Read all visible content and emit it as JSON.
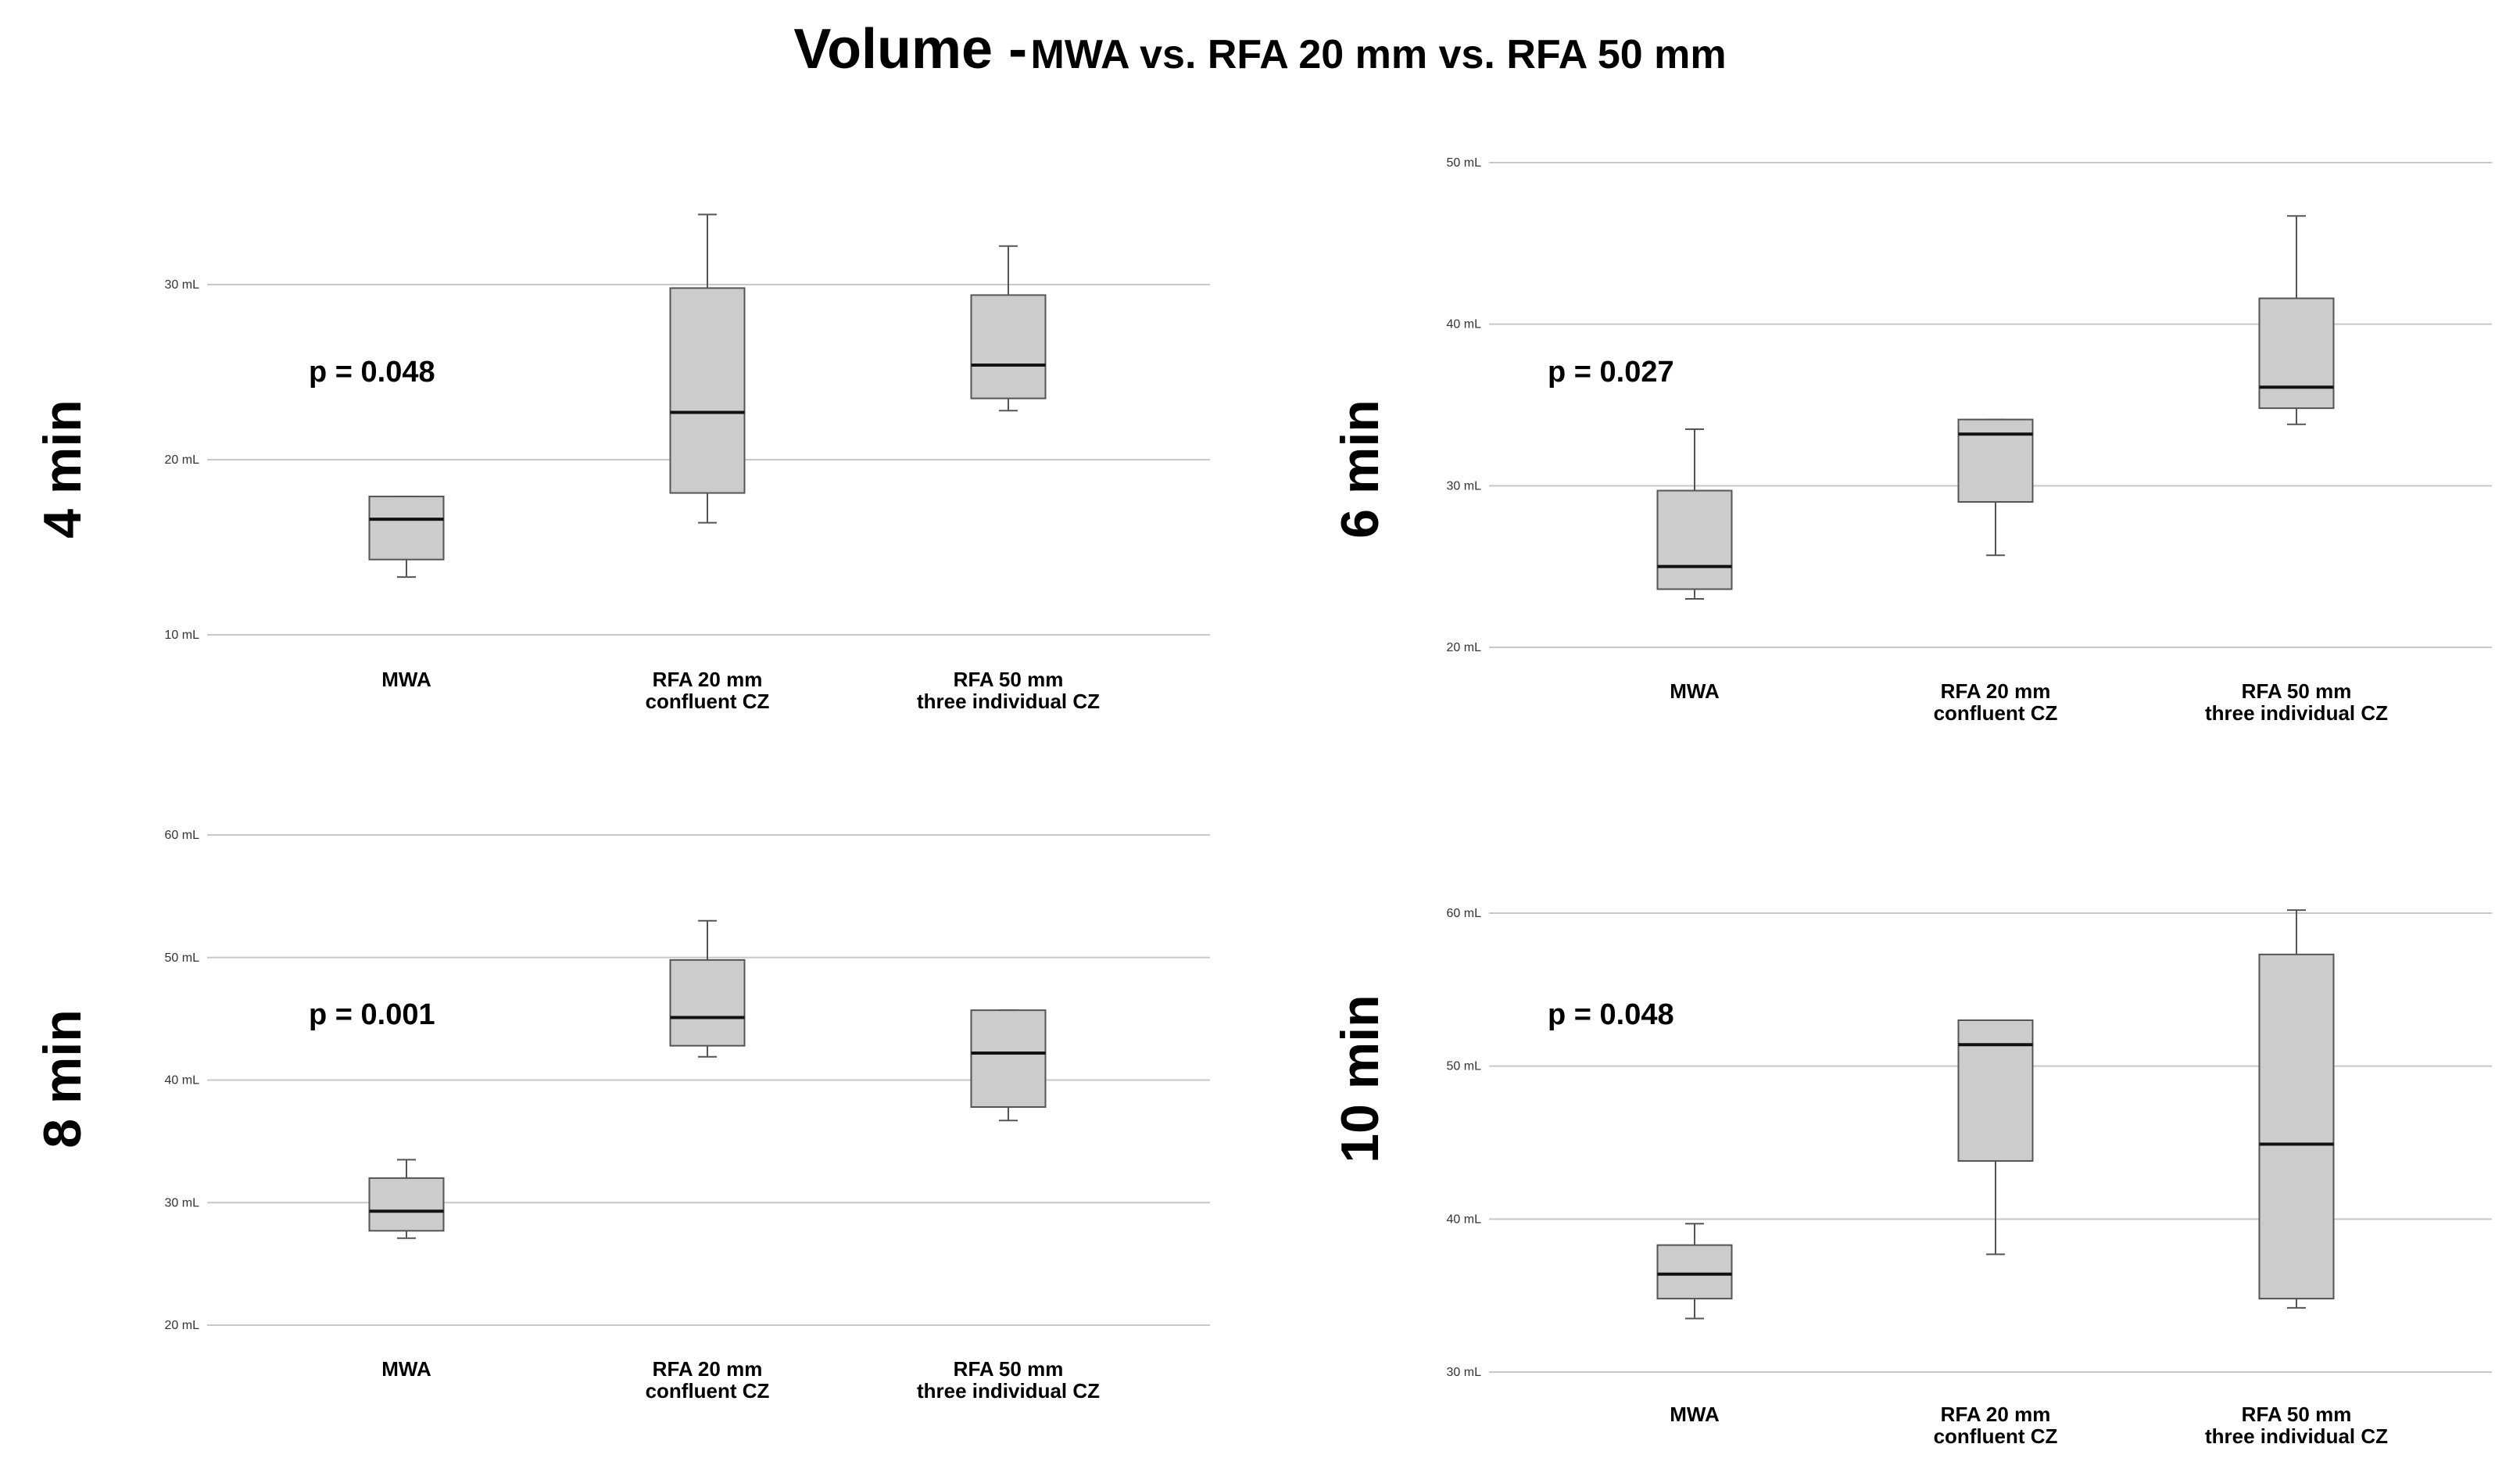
{
  "title": {
    "main": "Volume -",
    "sub": "MWA vs. RFA 20 mm vs. RFA 50 mm"
  },
  "colors": {
    "box_fill": "#cccccc",
    "box_stroke": "#555555",
    "median": "#111111",
    "grid": "#c8c8c8"
  },
  "chart_data": [
    {
      "type": "box",
      "panel_label": "4 min",
      "p_value": "p = 0.048",
      "y_unit": "mL",
      "ylim": [
        10,
        35
      ],
      "ticks": [
        10,
        20,
        30
      ],
      "tick_labels": [
        "10 mL",
        "20 mL",
        "30 mL"
      ],
      "categories": [
        [
          "MWA"
        ],
        [
          "RFA 20 mm",
          "confluent CZ"
        ],
        [
          "RFA 50 mm",
          "three individual CZ"
        ]
      ],
      "series": [
        {
          "name": "MWA",
          "min": 13.3,
          "q1": 14.3,
          "median": 16.6,
          "q3": 17.9,
          "max": 17.9
        },
        {
          "name": "RFA 20 mm confluent CZ",
          "min": 16.4,
          "q1": 18.1,
          "median": 22.7,
          "q3": 29.8,
          "max": 34.0
        },
        {
          "name": "RFA 50 mm three individual CZ",
          "min": 22.8,
          "q1": 23.5,
          "median": 25.4,
          "q3": 29.4,
          "max": 32.2
        }
      ]
    },
    {
      "type": "box",
      "panel_label": "6 min",
      "p_value": "p = 0.027",
      "y_unit": "mL",
      "ylim": [
        20,
        50
      ],
      "ticks": [
        20,
        30,
        40,
        50
      ],
      "tick_labels": [
        "20 mL",
        "30 mL",
        "40 mL",
        "50 mL"
      ],
      "categories": [
        [
          "MWA"
        ],
        [
          "RFA 20 mm",
          "confluent CZ"
        ],
        [
          "RFA 50 mm",
          "three individual CZ"
        ]
      ],
      "series": [
        {
          "name": "MWA",
          "min": 23.0,
          "q1": 23.6,
          "median": 25.0,
          "q3": 29.7,
          "max": 33.5
        },
        {
          "name": "RFA 20 mm confluent CZ",
          "min": 25.7,
          "q1": 29.0,
          "median": 33.2,
          "q3": 34.1,
          "max": 34.1
        },
        {
          "name": "RFA 50 mm three individual CZ",
          "min": 33.8,
          "q1": 34.8,
          "median": 36.1,
          "q3": 41.6,
          "max": 46.7
        }
      ]
    },
    {
      "type": "box",
      "panel_label": "8 min",
      "p_value": "p = 0.001",
      "y_unit": "mL",
      "ylim": [
        20,
        60
      ],
      "ticks": [
        20,
        30,
        40,
        50,
        60
      ],
      "tick_labels": [
        "20 mL",
        "30 mL",
        "40 mL",
        "50 mL",
        "60 mL"
      ],
      "categories": [
        [
          "MWA"
        ],
        [
          "RFA 20 mm",
          "confluent CZ"
        ],
        [
          "RFA 50 mm",
          "three individual CZ"
        ]
      ],
      "series": [
        {
          "name": "MWA",
          "min": 27.1,
          "q1": 27.7,
          "median": 29.3,
          "q3": 32.0,
          "max": 33.5
        },
        {
          "name": "RFA 20 mm confluent CZ",
          "min": 41.9,
          "q1": 42.8,
          "median": 45.1,
          "q3": 49.8,
          "max": 53.0
        },
        {
          "name": "RFA 50 mm three individual CZ",
          "min": 36.7,
          "q1": 37.8,
          "median": 42.2,
          "q3": 45.7,
          "max": 45.7
        }
      ]
    },
    {
      "type": "box",
      "panel_label": "10 min",
      "p_value": "p = 0.048",
      "y_unit": "mL",
      "ylim": [
        30,
        60
      ],
      "ticks": [
        30,
        40,
        50,
        60
      ],
      "tick_labels": [
        "30 mL",
        "40 mL",
        "50 mL",
        "60 mL"
      ],
      "categories": [
        [
          "MWA"
        ],
        [
          "RFA 20 mm",
          "confluent CZ"
        ],
        [
          "RFA 50 mm",
          "three individual CZ"
        ]
      ],
      "series": [
        {
          "name": "MWA",
          "min": 33.5,
          "q1": 34.8,
          "median": 36.4,
          "q3": 38.3,
          "max": 39.7
        },
        {
          "name": "RFA 20 mm confluent CZ",
          "min": 37.7,
          "q1": 43.8,
          "median": 51.4,
          "q3": 53.0,
          "max": 53.0
        },
        {
          "name": "RFA 50 mm three individual CZ",
          "min": 34.2,
          "q1": 34.8,
          "median": 44.9,
          "q3": 57.3,
          "max": 60.2
        }
      ]
    }
  ]
}
